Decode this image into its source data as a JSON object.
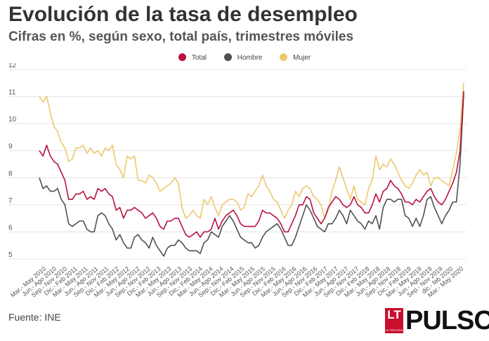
{
  "header": {
    "title": "Evolución de la tasa de desempleo",
    "subtitle": "Cifras en %, según sexo, total país, trimestres móviles"
  },
  "footer": {
    "source": "Fuente: INE",
    "logo_mark": "LT",
    "logo_mark_small": "LA TERCERA",
    "logo_word": "PULSO"
  },
  "chart_data": {
    "type": "line",
    "ylim": [
      5,
      12
    ],
    "yticks": [
      "5",
      "6",
      "7",
      "8",
      "9",
      "10",
      "11",
      "12"
    ],
    "grid": "horizontal",
    "legend_position": "top-center",
    "x_tick_labels": [
      "Mar.- May 2010",
      "Jun.- Ago 2010",
      "Sep.- Nov 2010",
      "Dic.- Feb 2011",
      "Mar.- May 2011",
      "Jun.- Ago 2011",
      "Sep.- Nov 2011",
      "Dic.- Feb 2012",
      "Mar.- May 2012",
      "Jun.- Ago 2012",
      "Sep.- Nov 2012",
      "Dic.- Feb 2013",
      "Mar.- May 2013",
      "Jun.- Ago 2013",
      "Sep.- Nov 2013",
      "Dic.- Feb 2014",
      "Mar.- May 2014",
      "Jun.- Ago 2014",
      "Sep.- Nov 2014",
      "Dic.- Feb 2015",
      "Mar.- May 2015",
      "Jun.- Ago 2015",
      "Sep.- Nov 2015",
      "Dic.- Feb 2016",
      "Mar.- May 2016",
      "Jun.- Ago 2016",
      "Sep.- Nov 2016",
      "Dic.- Feb 2017",
      "Mar.- May 2017",
      "Jun.- Ago 2017",
      "Sep.- Nov 2017",
      "Dic.- Feb 2018",
      "Mar.- May 2018",
      "Jun.- Ago 2018",
      "Sep.- Nov 2018",
      "Dic.- Feb 2019",
      "Mar.- May 2019",
      "Jun.- Ago 2019",
      "Sep.- Nov 2019",
      "dic.- feb 2020",
      "Mar.- May 2020"
    ],
    "series": [
      {
        "name": "Total",
        "color": "#b8123e",
        "values": [
          9.0,
          8.8,
          9.2,
          8.8,
          8.6,
          8.5,
          8.2,
          7.9,
          7.2,
          7.2,
          7.4,
          7.4,
          7.5,
          7.2,
          7.3,
          7.2,
          7.6,
          7.5,
          7.6,
          7.4,
          7.3,
          6.8,
          6.9,
          6.5,
          6.8,
          6.8,
          6.9,
          6.8,
          6.7,
          6.5,
          6.6,
          6.7,
          6.5,
          6.2,
          6.1,
          6.4,
          6.4,
          6.5,
          6.5,
          6.2,
          5.9,
          5.8,
          5.9,
          6.0,
          5.8,
          6.0,
          6.0,
          6.1,
          6.5,
          6.1,
          6.4,
          6.6,
          6.7,
          6.8,
          6.6,
          6.3,
          6.2,
          6.2,
          6.2,
          6.2,
          6.4,
          6.8,
          6.7,
          6.7,
          6.6,
          6.5,
          6.3,
          6.0,
          6.0,
          6.3,
          6.6,
          7.0,
          7.0,
          7.3,
          7.2,
          6.7,
          6.5,
          6.3,
          6.5,
          6.9,
          7.1,
          7.3,
          7.2,
          7.0,
          6.9,
          7.0,
          7.3,
          7.0,
          6.9,
          6.7,
          6.7,
          7.0,
          7.4,
          7.1,
          7.5,
          7.6,
          7.9,
          7.7,
          7.6,
          7.4,
          7.1,
          7.1,
          7.0,
          7.2,
          7.1,
          7.3,
          7.5,
          7.6,
          7.3,
          7.1,
          7.0,
          7.2,
          7.5,
          7.8,
          8.2,
          9.0,
          11.2
        ]
      },
      {
        "name": "Hombre",
        "color": "#505050",
        "values": [
          8.0,
          7.6,
          7.7,
          7.5,
          7.5,
          7.6,
          7.2,
          7.0,
          6.3,
          6.2,
          6.3,
          6.4,
          6.4,
          6.1,
          6.0,
          6.0,
          6.6,
          6.7,
          6.6,
          6.3,
          6.1,
          5.7,
          5.9,
          5.6,
          5.4,
          5.4,
          5.8,
          5.9,
          5.7,
          5.6,
          5.4,
          5.8,
          5.5,
          5.3,
          5.1,
          5.4,
          5.5,
          5.5,
          5.7,
          5.6,
          5.4,
          5.3,
          5.3,
          5.3,
          5.2,
          5.6,
          5.7,
          6.0,
          5.9,
          5.8,
          6.2,
          6.4,
          6.6,
          6.4,
          6.1,
          5.8,
          5.7,
          5.6,
          5.6,
          5.4,
          5.5,
          5.8,
          6.0,
          6.1,
          6.2,
          6.3,
          6.1,
          5.8,
          5.5,
          5.5,
          5.8,
          6.2,
          6.6,
          7.0,
          6.8,
          6.5,
          6.2,
          6.1,
          6.0,
          6.3,
          6.3,
          6.5,
          6.8,
          6.6,
          6.3,
          6.8,
          6.6,
          6.4,
          6.3,
          6.1,
          6.4,
          6.3,
          6.6,
          6.1,
          6.9,
          7.2,
          7.2,
          7.1,
          7.2,
          7.2,
          6.6,
          6.5,
          6.2,
          6.5,
          6.2,
          6.6,
          7.2,
          7.3,
          6.9,
          6.6,
          6.3,
          6.6,
          6.8,
          7.1,
          7.1,
          8.5,
          11.1
        ]
      },
      {
        "name": "Mujer",
        "color": "#ecc96d",
        "values": [
          11.0,
          10.8,
          11.0,
          10.4,
          9.9,
          9.7,
          9.3,
          9.1,
          8.6,
          8.7,
          9.1,
          9.1,
          9.2,
          8.9,
          9.1,
          8.9,
          9.0,
          8.8,
          9.1,
          9.0,
          9.2,
          8.5,
          8.3,
          8.0,
          8.8,
          8.7,
          8.8,
          7.9,
          7.9,
          7.8,
          8.1,
          8.0,
          7.8,
          7.5,
          7.6,
          7.7,
          7.8,
          8.0,
          7.8,
          6.9,
          6.5,
          6.6,
          6.8,
          6.6,
          6.5,
          7.2,
          7.0,
          7.3,
          6.9,
          6.6,
          7.0,
          7.1,
          7.2,
          7.2,
          7.1,
          6.8,
          6.9,
          7.4,
          7.3,
          7.5,
          7.7,
          8.1,
          7.7,
          7.5,
          7.2,
          7.1,
          6.8,
          6.5,
          6.8,
          7.0,
          7.5,
          7.3,
          7.6,
          7.7,
          7.6,
          7.3,
          7.2,
          7.0,
          6.5,
          6.8,
          7.5,
          7.9,
          8.4,
          8.0,
          7.6,
          7.2,
          7.7,
          7.2,
          7.1,
          7.0,
          7.6,
          7.9,
          8.8,
          8.3,
          8.5,
          8.4,
          8.7,
          8.5,
          8.2,
          7.9,
          7.7,
          7.6,
          7.8,
          8.1,
          8.3,
          8.1,
          8.2,
          7.7,
          8.0,
          8.0,
          7.9,
          7.8,
          7.7,
          8.3,
          8.9,
          9.8,
          11.5
        ]
      }
    ]
  }
}
